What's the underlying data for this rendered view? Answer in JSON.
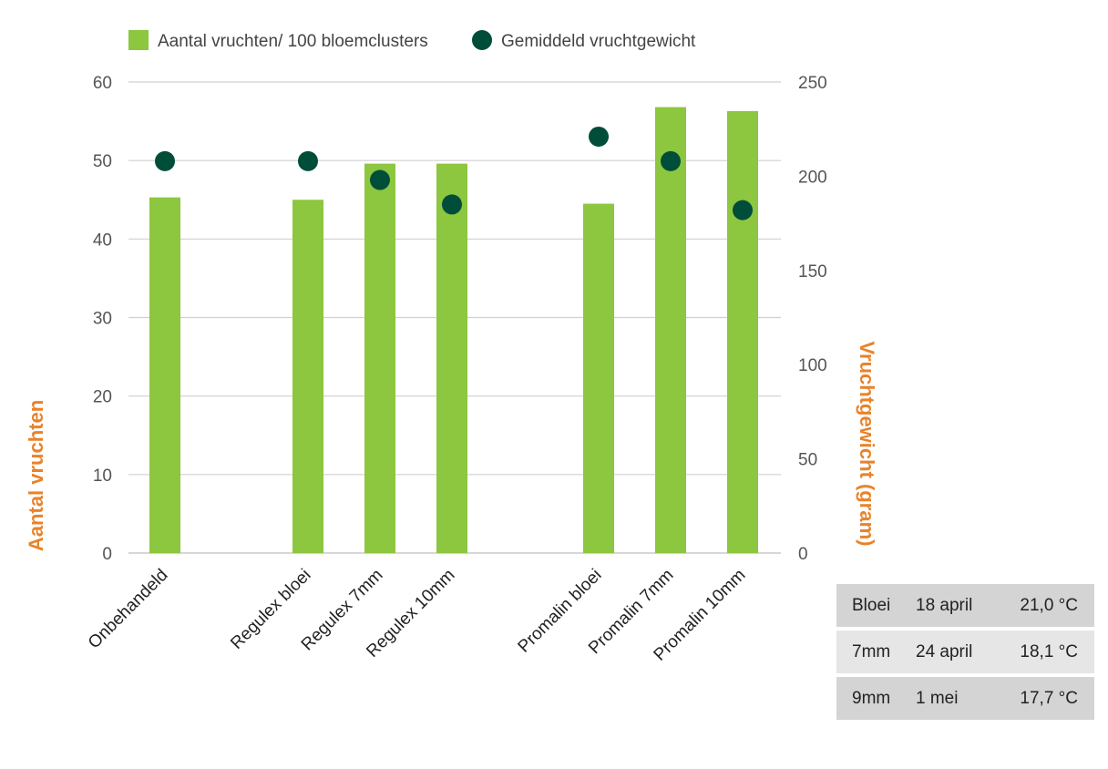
{
  "chart_data": {
    "type": "bar",
    "categories": [
      "Onbehandeld",
      "Regulex bloei",
      "Regulex 7mm",
      "Regulex 10mm",
      "Promalin bloei",
      "Promalin 7mm",
      "Promalin 10mm"
    ],
    "series": [
      {
        "name": "Aantal vruchten/ 100 bloemclusters",
        "kind": "bar",
        "axis": "left",
        "color": "#8DC63F",
        "values": [
          45.3,
          45.0,
          49.6,
          49.6,
          44.5,
          56.8,
          56.3
        ]
      },
      {
        "name": "Gemiddeld vruchtgewicht",
        "kind": "scatter",
        "axis": "right",
        "color": "#004D3A",
        "values": [
          208,
          208,
          198,
          185,
          221,
          208,
          182
        ]
      }
    ],
    "ylabel": "Aantal vruchten",
    "ylim": [
      0,
      60
    ],
    "yticks": [
      "0",
      "10",
      "20",
      "30",
      "40",
      "50",
      "60"
    ],
    "y2label": "Vruchtgewicht (gram)",
    "y2lim": [
      0,
      250
    ],
    "y2ticks": [
      "0",
      "50",
      "100",
      "150",
      "200",
      "250"
    ],
    "grid": true,
    "legend_position": "top"
  },
  "info_table": [
    [
      "Bloei",
      "18 april",
      "21,0 °C"
    ],
    [
      "7mm",
      "24 april",
      "18,1 °C"
    ],
    [
      "9mm",
      "1 mei",
      "17,7 °C"
    ]
  ]
}
